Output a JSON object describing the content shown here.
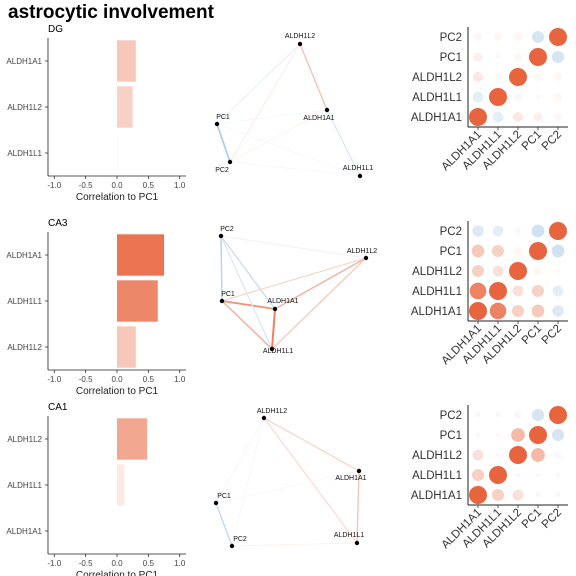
{
  "title": "astrocytic involvement",
  "colors": {
    "positive": "#e8643e",
    "negative": "#7aa8d6",
    "text": "#333333"
  },
  "chart_data": [
    {
      "panel": "DG",
      "type": "bar",
      "orientation": "horizontal",
      "categories": [
        "ALDH1A1",
        "ALDH1L2",
        "ALDH1L1"
      ],
      "values": [
        0.3,
        0.25,
        0.02
      ],
      "xlabel": "Correlation to PC1",
      "xlim": [
        -1.1,
        1.1
      ],
      "xticks": [
        "-1.0",
        "-0.5",
        "0.0",
        "0.5",
        "1.0"
      ],
      "network": {
        "nodes": [
          {
            "name": "ALDH1L2"
          },
          {
            "name": "ALDH1A1"
          },
          {
            "name": "PC1"
          },
          {
            "name": "PC2"
          },
          {
            "name": "ALDH1L1"
          }
        ],
        "edges": [
          {
            "a": "ALDH1L2",
            "b": "ALDH1A1",
            "w": 0.4
          },
          {
            "a": "ALDH1L2",
            "b": "PC1",
            "w": -0.2
          },
          {
            "a": "ALDH1L2",
            "b": "PC2",
            "w": 0.15
          },
          {
            "a": "ALDH1A1",
            "b": "PC2",
            "w": 0.1
          },
          {
            "a": "ALDH1A1",
            "b": "PC1",
            "w": -0.1
          },
          {
            "a": "ALDH1A1",
            "b": "ALDH1L1",
            "w": -0.3
          },
          {
            "a": "PC1",
            "b": "PC2",
            "w": -0.6
          },
          {
            "a": "PC1",
            "b": "ALDH1L1",
            "w": -0.1
          },
          {
            "a": "PC2",
            "b": "ALDH1L1",
            "w": -0.1
          }
        ]
      },
      "corr_labels": [
        "ALDH1A1",
        "ALDH1L1",
        "ALDH1L2",
        "PC1",
        "PC2"
      ],
      "corr_matrix": [
        [
          1.0,
          -0.2,
          0.15,
          0.1,
          0.05
        ],
        [
          -0.2,
          1.0,
          -0.05,
          0.0,
          0.05
        ],
        [
          0.15,
          -0.05,
          1.0,
          0.05,
          0.05
        ],
        [
          0.1,
          0.0,
          0.05,
          1.0,
          -0.3
        ],
        [
          0.05,
          0.05,
          0.05,
          -0.3,
          1.0
        ]
      ]
    },
    {
      "panel": "CA3",
      "type": "bar",
      "orientation": "horizontal",
      "categories": [
        "ALDH1A1",
        "ALDH1L1",
        "ALDH1L2"
      ],
      "values": [
        0.75,
        0.65,
        0.3
      ],
      "xlabel": "Correlation to PC1",
      "xlim": [
        -1.1,
        1.1
      ],
      "xticks": [
        "-1.0",
        "-0.5",
        "0.0",
        "0.5",
        "1.0"
      ],
      "network": {
        "nodes": [
          {
            "name": "PC2"
          },
          {
            "name": "ALDH1L2"
          },
          {
            "name": "PC1"
          },
          {
            "name": "ALDH1A1"
          },
          {
            "name": "ALDH1L1"
          }
        ],
        "edges": [
          {
            "a": "ALDH1A1",
            "b": "ALDH1L1",
            "w": 0.8
          },
          {
            "a": "PC1",
            "b": "ALDH1A1",
            "w": 0.7
          },
          {
            "a": "PC1",
            "b": "ALDH1L1",
            "w": 0.5
          },
          {
            "a": "ALDH1L2",
            "b": "ALDH1A1",
            "w": 0.5
          },
          {
            "a": "ALDH1L2",
            "b": "ALDH1L1",
            "w": 0.35
          },
          {
            "a": "ALDH1L2",
            "b": "PC1",
            "w": 0.3
          },
          {
            "a": "PC2",
            "b": "PC1",
            "w": -0.5
          },
          {
            "a": "PC2",
            "b": "ALDH1A1",
            "w": -0.4
          },
          {
            "a": "PC2",
            "b": "ALDH1L1",
            "w": -0.3
          },
          {
            "a": "PC2",
            "b": "ALDH1L2",
            "w": -0.15
          }
        ]
      },
      "corr_labels": [
        "ALDH1A1",
        "ALDH1L1",
        "ALDH1L2",
        "PC1",
        "PC2"
      ],
      "corr_matrix": [
        [
          1.0,
          0.8,
          0.3,
          0.35,
          -0.25
        ],
        [
          0.8,
          1.0,
          0.2,
          0.3,
          -0.2
        ],
        [
          0.3,
          0.2,
          1.0,
          0.05,
          0.0
        ],
        [
          0.35,
          0.3,
          0.05,
          1.0,
          -0.35
        ],
        [
          -0.25,
          -0.2,
          0.0,
          -0.35,
          1.0
        ]
      ]
    },
    {
      "panel": "CA1",
      "type": "bar",
      "orientation": "horizontal",
      "categories": [
        "ALDH1L2",
        "ALDH1L1",
        "ALDH1A1"
      ],
      "values": [
        0.48,
        0.12,
        -0.01
      ],
      "xlabel": "Correlation to PC1",
      "xlim": [
        -1.1,
        1.1
      ],
      "xticks": [
        "-1.0",
        "-0.5",
        "0.0",
        "0.5",
        "1.0"
      ],
      "network": {
        "nodes": [
          {
            "name": "ALDH1L2"
          },
          {
            "name": "ALDH1A1"
          },
          {
            "name": "PC1"
          },
          {
            "name": "PC2"
          },
          {
            "name": "ALDH1L1"
          }
        ],
        "edges": [
          {
            "a": "ALDH1A1",
            "b": "ALDH1L1",
            "w": 0.4
          },
          {
            "a": "ALDH1L2",
            "b": "ALDH1A1",
            "w": 0.3
          },
          {
            "a": "ALDH1L2",
            "b": "ALDH1L1",
            "w": 0.25
          },
          {
            "a": "ALDH1L2",
            "b": "PC2",
            "w": -0.1
          },
          {
            "a": "ALDH1L2",
            "b": "PC1",
            "w": -0.1
          },
          {
            "a": "PC1",
            "b": "PC2",
            "w": -0.45
          },
          {
            "a": "PC1",
            "b": "ALDH1A1",
            "w": -0.1
          },
          {
            "a": "PC2",
            "b": "ALDH1L1",
            "w": 0.1
          }
        ]
      },
      "corr_labels": [
        "ALDH1A1",
        "ALDH1L1",
        "ALDH1L2",
        "PC1",
        "PC2"
      ],
      "corr_matrix": [
        [
          1.0,
          0.3,
          0.2,
          0.0,
          0.0
        ],
        [
          0.3,
          1.0,
          0.0,
          0.0,
          0.0
        ],
        [
          0.2,
          0.0,
          1.0,
          0.45,
          -0.05
        ],
        [
          0.0,
          0.0,
          0.45,
          1.0,
          -0.3
        ],
        [
          0.0,
          0.0,
          -0.05,
          -0.3,
          1.0
        ]
      ]
    }
  ]
}
